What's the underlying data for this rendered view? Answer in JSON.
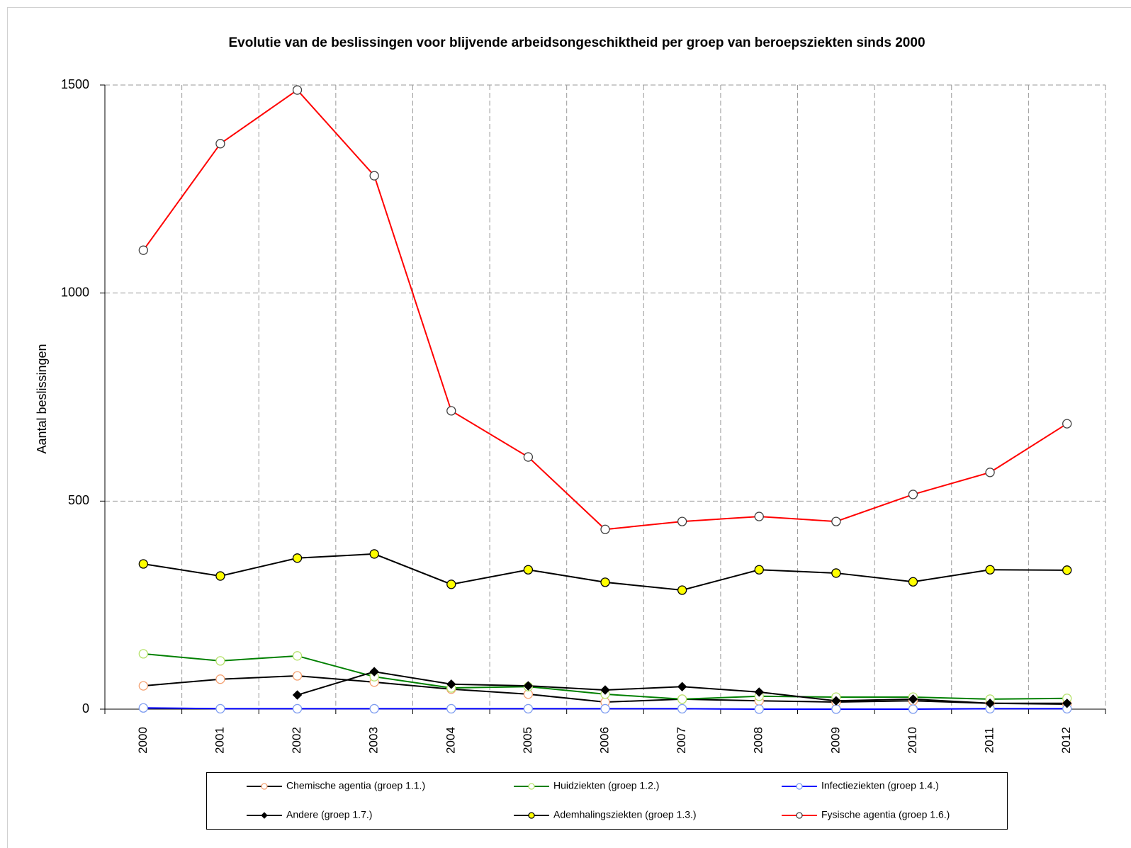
{
  "chart_data": {
    "type": "line",
    "title": "Evolutie van de beslissingen voor blijvende arbeidsongeschiktheid per groep van beroepsziekten sinds 2000",
    "y_label": "Aantal beslissingen",
    "categories": [
      "2000",
      "2001",
      "2002",
      "2003",
      "2004",
      "2005",
      "2006",
      "2007",
      "2008",
      "2009",
      "2010",
      "2011",
      "2012"
    ],
    "ylim": [
      0,
      1500
    ],
    "yticks": [
      0,
      500,
      1000,
      1500
    ],
    "grid": true,
    "legend": "bottom",
    "series": [
      {
        "name": "Chemische agentia (groep 1.1.)",
        "color": "#000000",
        "marker": "circle",
        "marker_color": "#f4a070",
        "marker_fill": "#ffffff",
        "values": [
          56,
          72,
          80,
          65,
          48,
          36,
          17,
          24,
          20,
          17,
          20,
          14,
          12
        ]
      },
      {
        "name": "Huidziekten (groep 1.2.)",
        "color": "#008000",
        "marker": "circle",
        "marker_color": "#b5e26a",
        "marker_fill": "#ffffff",
        "values": [
          133,
          116,
          128,
          78,
          51,
          54,
          36,
          24,
          31,
          29,
          29,
          24,
          26
        ]
      },
      {
        "name": "Infectieziekten (groep 1.4.)",
        "color": "#0000ff",
        "marker": "circle",
        "marker_color": "#7d9cf0",
        "marker_fill": "#ffffff",
        "values": [
          3,
          1,
          1,
          1,
          1,
          1,
          1,
          1,
          0,
          0,
          0,
          1,
          1
        ]
      },
      {
        "name": "Andere (groep 1.7.)",
        "color": "#000000",
        "marker": "diamond",
        "marker_color": "#000000",
        "marker_fill": "#000000",
        "values": [
          null,
          null,
          34,
          90,
          60,
          56,
          46,
          54,
          41,
          20,
          24,
          14,
          14
        ]
      },
      {
        "name": "Ademhalingsziekten (groep 1.3.)",
        "color": "#000000",
        "marker": "circle",
        "marker_color": "#000000",
        "marker_fill": "#ffff00",
        "values": [
          349,
          320,
          363,
          373,
          300,
          335,
          305,
          286,
          335,
          327,
          306,
          335,
          334
        ]
      },
      {
        "name": "Fysische agentia (groep 1.6.)",
        "color": "#ff0000",
        "marker": "circle",
        "marker_color": "#404040",
        "marker_fill": "#ffffff",
        "values": [
          1103,
          1359,
          1488,
          1282,
          717,
          606,
          432,
          451,
          463,
          451,
          516,
          569,
          686
        ]
      }
    ]
  }
}
